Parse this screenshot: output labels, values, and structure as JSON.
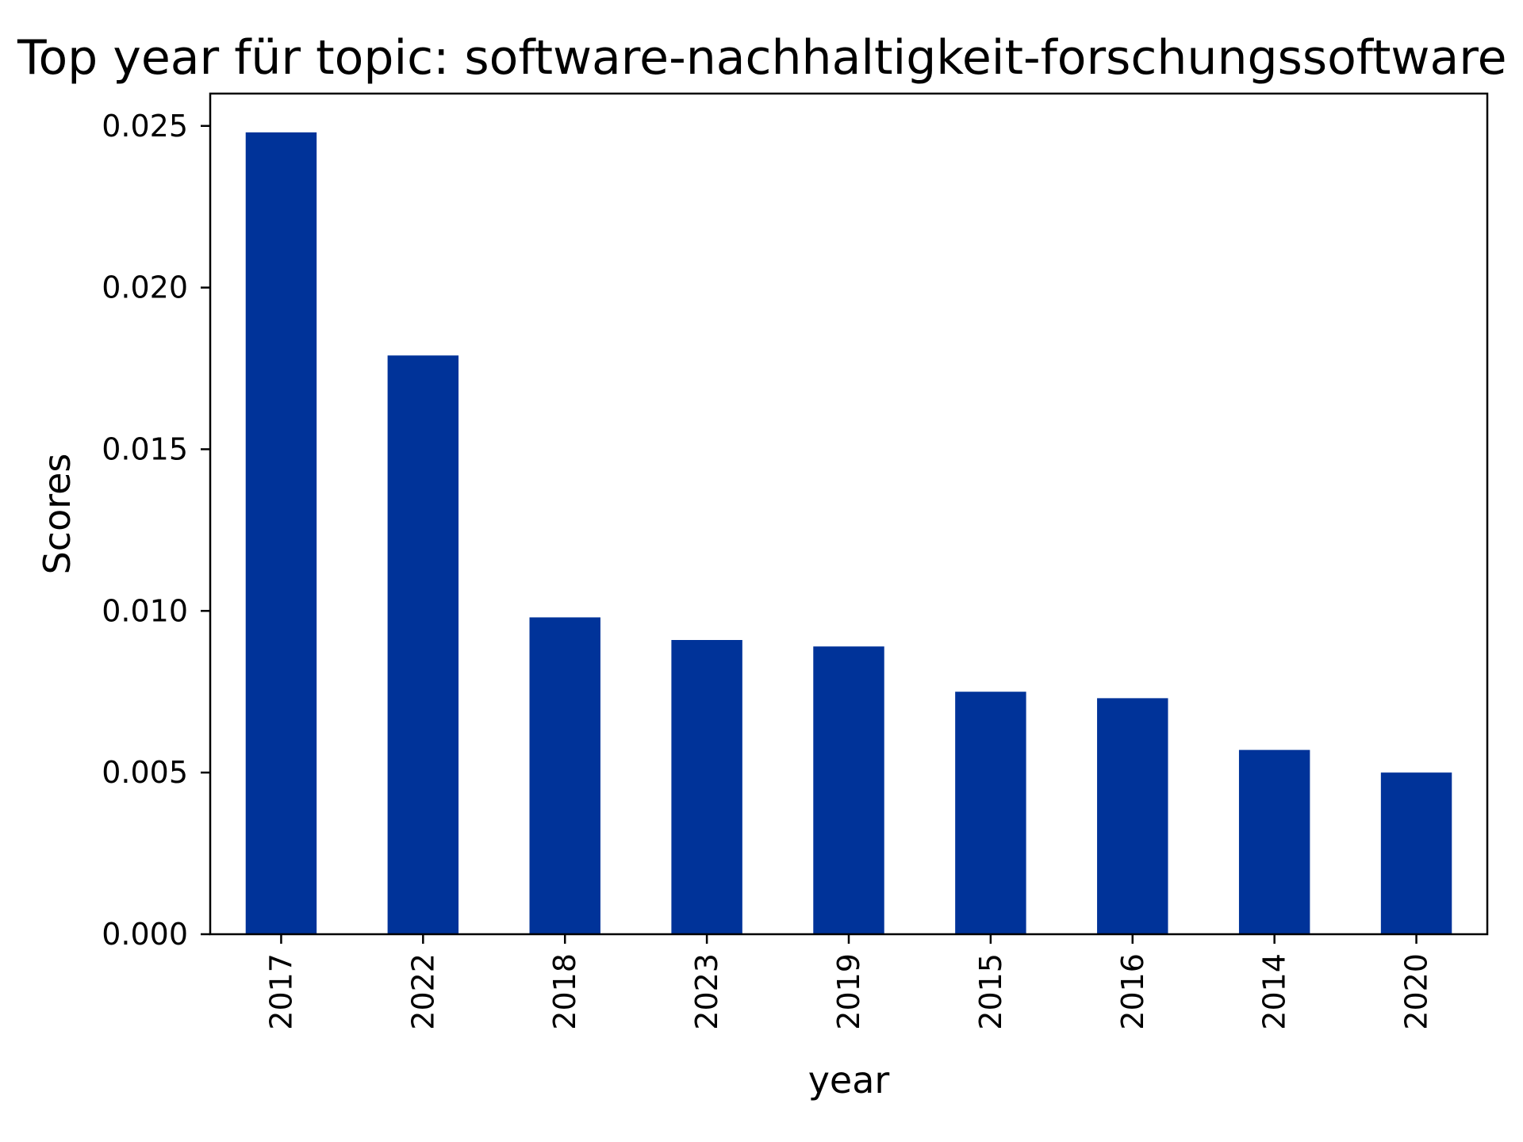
{
  "chart_data": {
    "type": "bar",
    "title": "Top year für topic: software-nachhaltigkeit-forschungssoftware",
    "xlabel": "year",
    "ylabel": "Scores",
    "categories": [
      "2017",
      "2022",
      "2018",
      "2023",
      "2019",
      "2015",
      "2016",
      "2014",
      "2020"
    ],
    "values": [
      0.0248,
      0.0179,
      0.0098,
      0.0091,
      0.0089,
      0.0075,
      0.0073,
      0.0057,
      0.005
    ],
    "ylim": [
      0,
      0.026
    ],
    "yticks": [
      "0.000",
      "0.005",
      "0.010",
      "0.015",
      "0.020",
      "0.025"
    ],
    "grid": false,
    "legend": "none",
    "bar_color": "#003399"
  }
}
